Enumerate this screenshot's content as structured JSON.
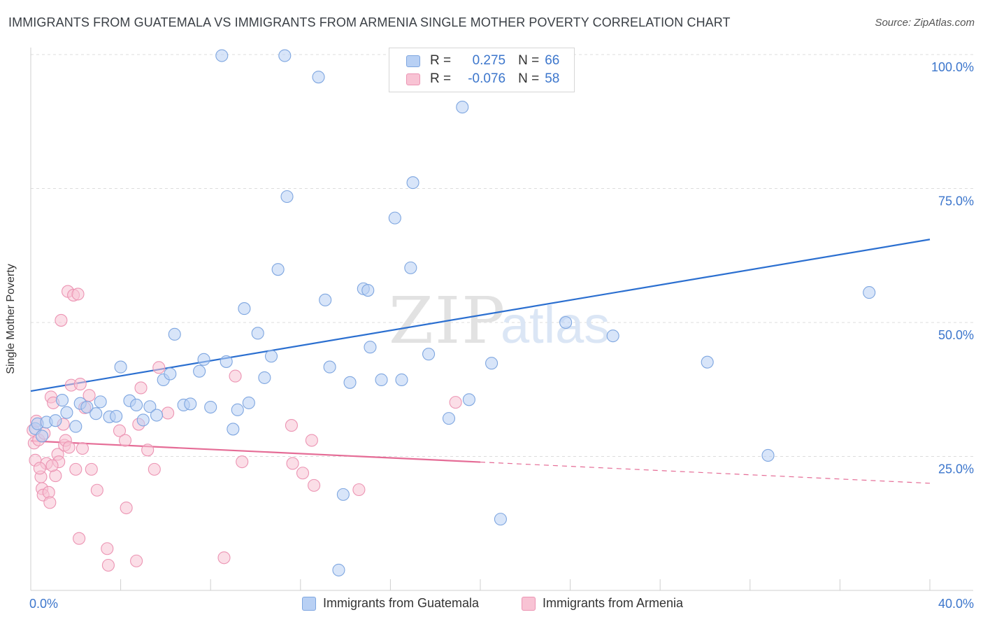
{
  "title": "IMMIGRANTS FROM GUATEMALA VS IMMIGRANTS FROM ARMENIA SINGLE MOTHER POVERTY CORRELATION CHART",
  "source": "Source: ZipAtlas.com",
  "watermark": {
    "zip": "ZIP",
    "atlas": "atlas"
  },
  "legend": {
    "r_label": "R =",
    "n_label": "N =",
    "rows": [
      {
        "r": "0.275",
        "n": "66"
      },
      {
        "r": "-0.076",
        "n": "58"
      }
    ]
  },
  "colors": {
    "guatemala_fill": "#b8d0f4",
    "guatemala_stroke": "#7ea6e0",
    "guatemala_line": "#2b6fd0",
    "armenia_fill": "#f8c3d4",
    "armenia_stroke": "#ec94b3",
    "armenia_line": "#e56c96",
    "tick_label": "#3c76cc",
    "grid": "#dcdcdc"
  },
  "chart_data": {
    "type": "scatter",
    "xlabel": "",
    "ylabel": "Single Mother Poverty",
    "xlim": [
      0,
      40
    ],
    "ylim": [
      0,
      100
    ],
    "x_tick_labels": [
      {
        "value": 0,
        "label": "0.0%"
      },
      {
        "value": 40,
        "label": "40.0%"
      }
    ],
    "y_tick_labels": [
      {
        "value": 25,
        "label": "25.0%"
      },
      {
        "value": 50,
        "label": "50.0%"
      },
      {
        "value": 75,
        "label": "75.0%"
      },
      {
        "value": 100,
        "label": "100.0%"
      }
    ],
    "grid": true,
    "legend_position": "top-center",
    "series": [
      {
        "name": "Immigrants from Guatemala",
        "r": 0.275,
        "n": 66,
        "trend": {
          "x": [
            0,
            40
          ],
          "y": [
            37.2,
            65.5
          ],
          "solid_to": 40
        },
        "points": [
          [
            0.2,
            30.2
          ],
          [
            0.3,
            31.1
          ],
          [
            0.5,
            28.8
          ],
          [
            0.7,
            31.4
          ],
          [
            1.1,
            31.7
          ],
          [
            1.4,
            35.5
          ],
          [
            1.6,
            33.2
          ],
          [
            2.0,
            30.6
          ],
          [
            2.2,
            34.9
          ],
          [
            2.5,
            34.2
          ],
          [
            2.9,
            33.0
          ],
          [
            3.1,
            35.2
          ],
          [
            3.5,
            32.4
          ],
          [
            3.8,
            32.5
          ],
          [
            4.0,
            41.7
          ],
          [
            4.4,
            35.4
          ],
          [
            4.7,
            34.6
          ],
          [
            5.0,
            31.8
          ],
          [
            5.3,
            34.3
          ],
          [
            5.6,
            32.7
          ],
          [
            5.9,
            39.3
          ],
          [
            6.2,
            40.4
          ],
          [
            6.4,
            47.8
          ],
          [
            6.8,
            34.6
          ],
          [
            7.1,
            34.8
          ],
          [
            7.5,
            40.9
          ],
          [
            7.7,
            43.1
          ],
          [
            8.0,
            34.2
          ],
          [
            8.5,
            99.8
          ],
          [
            8.7,
            42.7
          ],
          [
            9.0,
            30.1
          ],
          [
            9.2,
            33.7
          ],
          [
            9.5,
            52.6
          ],
          [
            9.7,
            35.0
          ],
          [
            10.1,
            48.0
          ],
          [
            10.4,
            39.7
          ],
          [
            10.7,
            43.7
          ],
          [
            11.0,
            59.9
          ],
          [
            11.3,
            99.8
          ],
          [
            11.4,
            73.5
          ],
          [
            12.8,
            95.8
          ],
          [
            13.1,
            54.2
          ],
          [
            13.3,
            41.7
          ],
          [
            13.7,
            3.8
          ],
          [
            13.9,
            17.9
          ],
          [
            14.2,
            38.8
          ],
          [
            14.8,
            56.3
          ],
          [
            15.0,
            56.0
          ],
          [
            15.1,
            45.4
          ],
          [
            15.6,
            39.3
          ],
          [
            16.2,
            69.5
          ],
          [
            16.5,
            39.3
          ],
          [
            16.9,
            60.2
          ],
          [
            17.0,
            76.1
          ],
          [
            17.7,
            44.1
          ],
          [
            18.6,
            32.1
          ],
          [
            19.2,
            90.2
          ],
          [
            19.5,
            35.6
          ],
          [
            20.5,
            42.4
          ],
          [
            20.9,
            13.3
          ],
          [
            23.8,
            50.0
          ],
          [
            25.9,
            47.5
          ],
          [
            30.1,
            42.6
          ],
          [
            32.8,
            25.2
          ],
          [
            37.3,
            55.6
          ],
          [
            20.0,
            99.5
          ]
        ]
      },
      {
        "name": "Immigrants from Armenia",
        "r": -0.076,
        "n": 58,
        "trend": {
          "x": [
            0,
            40
          ],
          "y": [
            27.9,
            20.0
          ],
          "solid_to": 20
        },
        "points": [
          [
            0.1,
            29.9
          ],
          [
            0.15,
            27.5
          ],
          [
            0.2,
            24.3
          ],
          [
            0.25,
            31.6
          ],
          [
            0.35,
            28.1
          ],
          [
            0.45,
            21.2
          ],
          [
            0.5,
            19.0
          ],
          [
            0.55,
            17.8
          ],
          [
            0.6,
            29.3
          ],
          [
            0.7,
            23.7
          ],
          [
            0.8,
            18.3
          ],
          [
            0.85,
            16.4
          ],
          [
            0.9,
            36.1
          ],
          [
            1.0,
            35.0
          ],
          [
            1.1,
            21.4
          ],
          [
            1.2,
            25.4
          ],
          [
            1.25,
            24.0
          ],
          [
            1.35,
            50.4
          ],
          [
            1.45,
            31.0
          ],
          [
            1.5,
            27.1
          ],
          [
            1.55,
            28.0
          ],
          [
            1.65,
            55.8
          ],
          [
            1.8,
            38.3
          ],
          [
            1.9,
            55.1
          ],
          [
            2.0,
            22.6
          ],
          [
            2.1,
            55.3
          ],
          [
            2.15,
            9.7
          ],
          [
            2.2,
            38.5
          ],
          [
            2.3,
            26.5
          ],
          [
            2.4,
            34.1
          ],
          [
            2.6,
            36.4
          ],
          [
            2.7,
            22.6
          ],
          [
            2.95,
            18.7
          ],
          [
            3.4,
            7.8
          ],
          [
            3.45,
            4.7
          ],
          [
            3.95,
            29.8
          ],
          [
            4.2,
            28.0
          ],
          [
            4.25,
            15.4
          ],
          [
            4.7,
            5.5
          ],
          [
            4.8,
            31.0
          ],
          [
            4.9,
            37.8
          ],
          [
            5.2,
            26.2
          ],
          [
            5.5,
            22.6
          ],
          [
            5.7,
            41.6
          ],
          [
            6.1,
            33.1
          ],
          [
            8.6,
            6.1
          ],
          [
            9.1,
            40.0
          ],
          [
            9.4,
            24.0
          ],
          [
            11.6,
            30.8
          ],
          [
            11.65,
            23.7
          ],
          [
            12.1,
            21.9
          ],
          [
            12.5,
            28.0
          ],
          [
            12.6,
            19.6
          ],
          [
            14.6,
            18.8
          ],
          [
            18.9,
            35.1
          ],
          [
            0.4,
            22.8
          ],
          [
            0.95,
            23.3
          ],
          [
            1.7,
            26.7
          ]
        ]
      }
    ]
  },
  "bottom_legend": [
    "Immigrants from Guatemala",
    "Immigrants from Armenia"
  ]
}
